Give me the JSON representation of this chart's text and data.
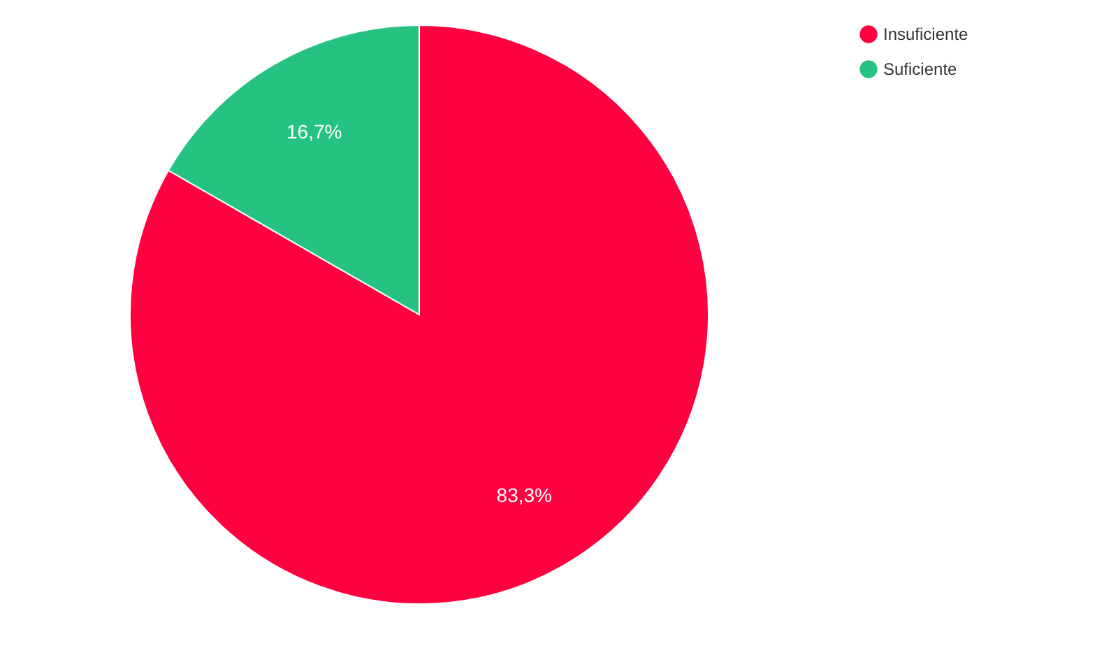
{
  "chart_data": {
    "type": "pie",
    "categories": [
      "Insuficiente",
      "Suficiente"
    ],
    "values": [
      83.3,
      16.7
    ],
    "colors": [
      "#ff0040",
      "#26c281"
    ],
    "value_labels": [
      "83,3%",
      "16,7%"
    ],
    "legend": "top right"
  }
}
